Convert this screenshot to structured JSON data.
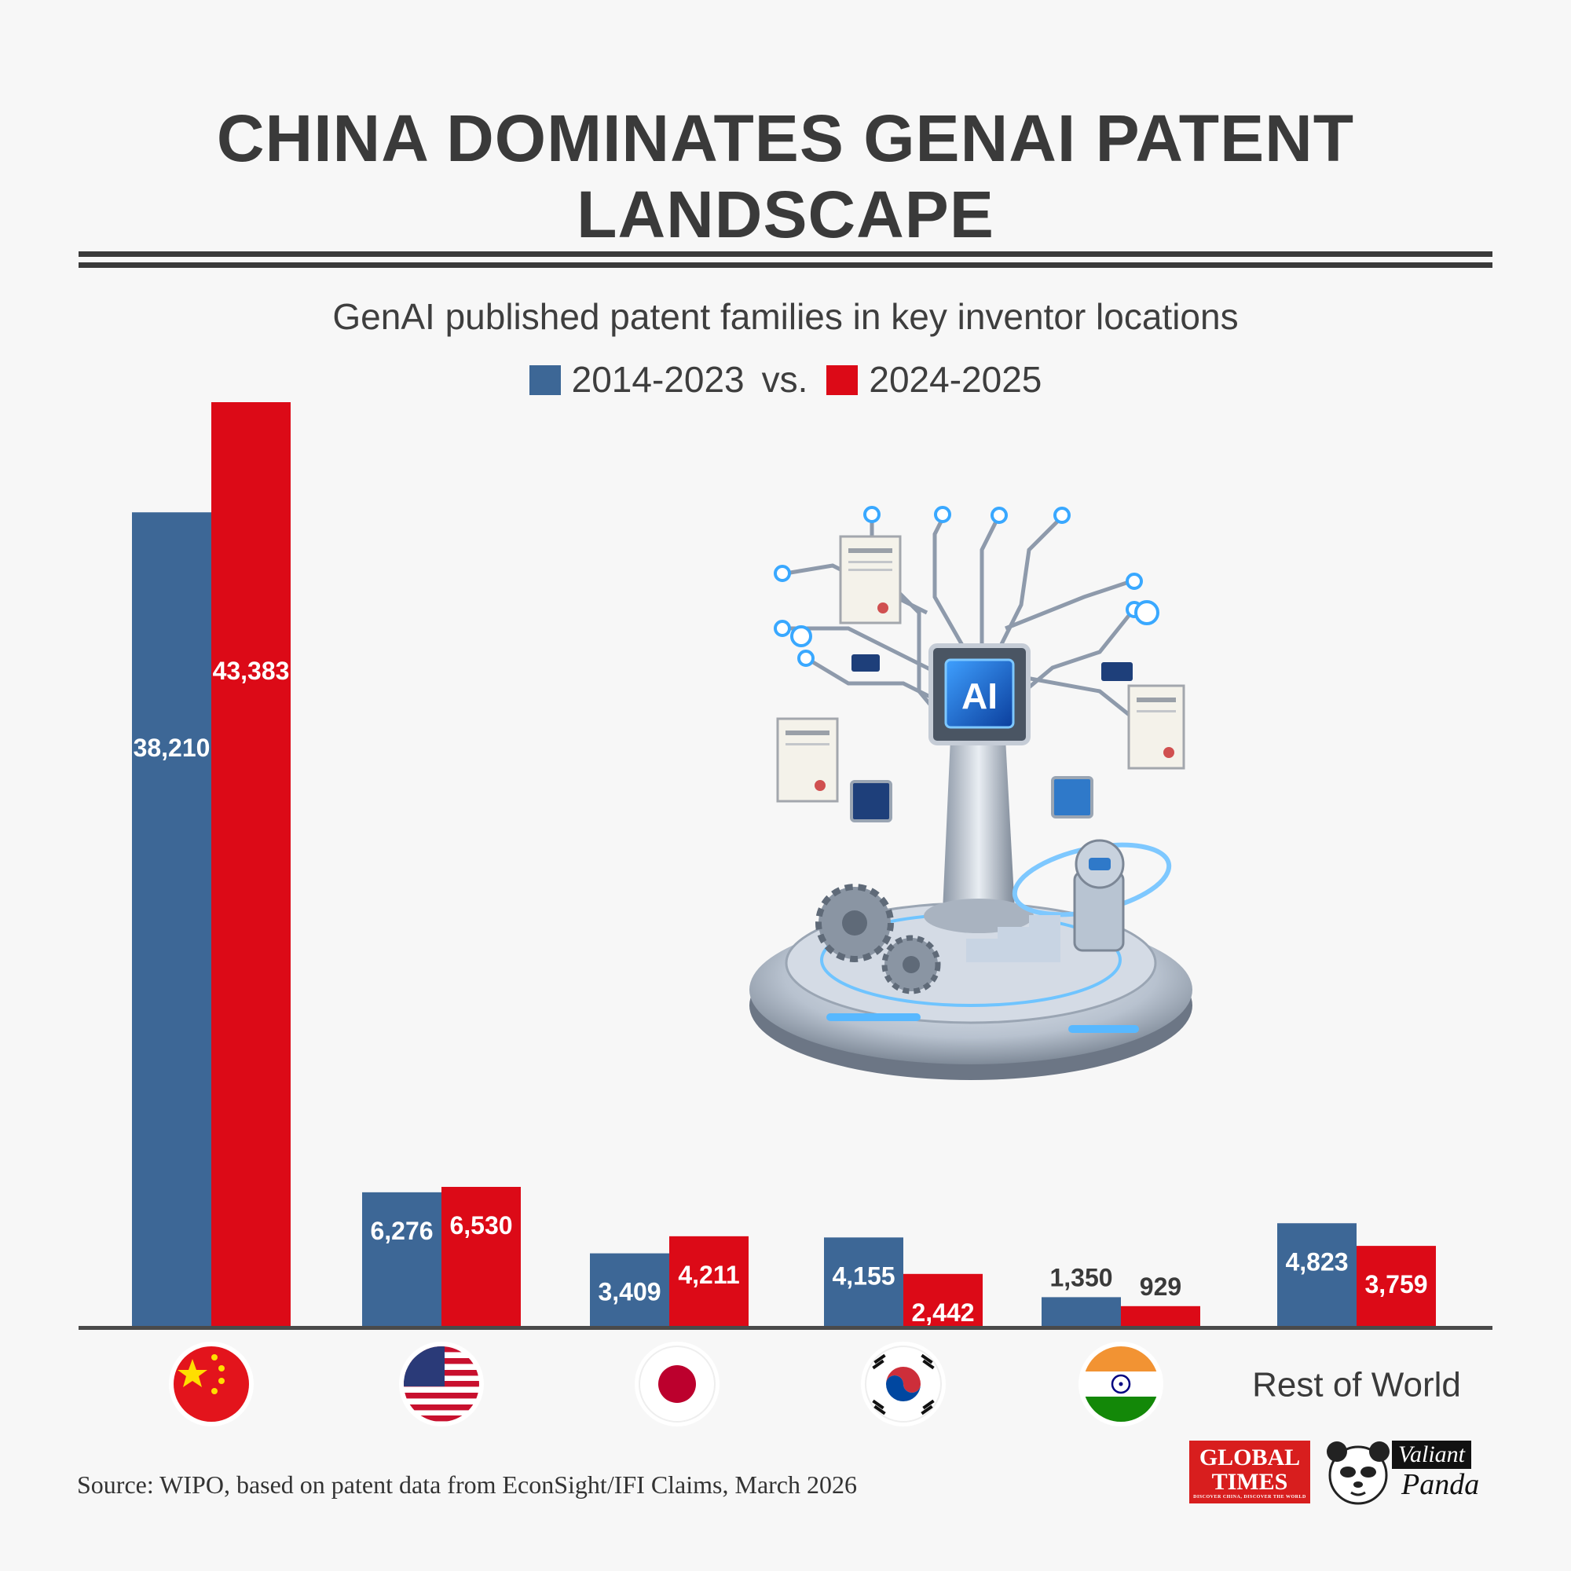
{
  "title": "CHINA DOMINATES GENAI PATENT LANDSCAPE",
  "source": "Source: WIPO, based on patent data from EconSight/IFI Claims, March 2026",
  "colors": {
    "series_2014_2023": "#3d6796",
    "series_2024_2025": "#dc0a17",
    "text_dark": "#3a3a3a",
    "axis": "#4a4a4a"
  },
  "chart_data": {
    "type": "bar",
    "title": "GenAI published patent families in key inventor locations",
    "categories": [
      "China",
      "United States",
      "Japan",
      "South Korea",
      "India",
      "Rest of World"
    ],
    "category_label_text": "Rest of World",
    "series": [
      {
        "name": "2014-2023",
        "values": [
          38210,
          6276,
          3409,
          4155,
          1350,
          4823
        ]
      },
      {
        "name": "2024-2025",
        "values": [
          43383,
          6530,
          4211,
          2442,
          929,
          3759
        ]
      }
    ],
    "value_labels": [
      [
        "38,210",
        "6,276",
        "3,409",
        "4,155",
        "1,350",
        "4,823"
      ],
      [
        "43,383",
        "6,530",
        "4,211",
        "2,442",
        "929",
        "3,759"
      ]
    ],
    "legend_separator": "vs.",
    "legend_position": "top-center",
    "ylim": [
      0,
      43383
    ],
    "grid": false,
    "category_icons": [
      "china-flag-icon",
      "usa-flag-icon",
      "japan-flag-icon",
      "south-korea-flag-icon",
      "india-flag-icon",
      "text-label"
    ]
  },
  "illustration": {
    "icon": "ai-chip-tree-icon",
    "chip_label": "AI"
  },
  "logos": {
    "global_times_line1": "GLOBAL",
    "global_times_line2": "TIMES",
    "global_times_tagline": "DISCOVER CHINA, DISCOVER THE WORLD",
    "valiant_panda_line1": "Valiant",
    "valiant_panda_line2": "Panda"
  }
}
